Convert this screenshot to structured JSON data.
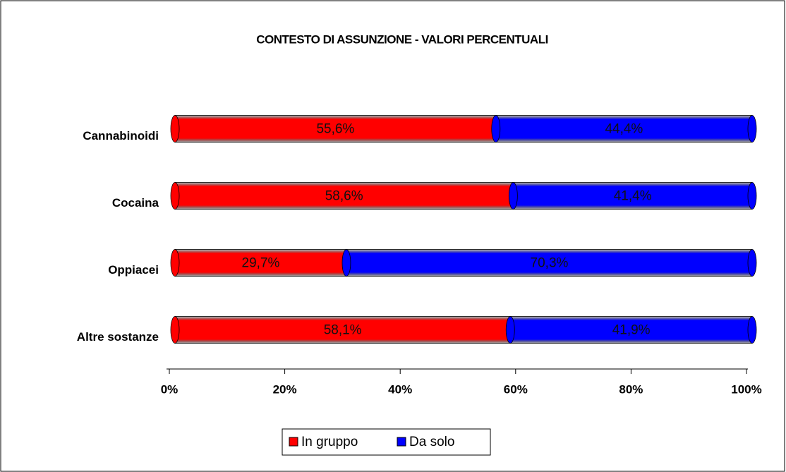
{
  "chart_data": {
    "type": "stacked_barh",
    "title": "CONTESTO DI ASSUNZIONE - VALORI PERCENTUALI",
    "categories": [
      "Cannabinoidi",
      "Cocaina",
      "Oppiacei",
      "Altre sostanze"
    ],
    "series": [
      {
        "name": "In gruppo",
        "color": "#ff0000",
        "values": [
          55.6,
          58.6,
          29.7,
          58.1
        ],
        "value_labels": [
          "55,6%",
          "58,6%",
          "29,7%",
          "58,1%"
        ]
      },
      {
        "name": "Da solo",
        "color": "#0000ff",
        "values": [
          44.4,
          41.4,
          70.3,
          41.9
        ],
        "value_labels": [
          "44,4%",
          "41,4%",
          "70,3%",
          "41,9%"
        ]
      }
    ],
    "xlim": [
      0,
      100
    ],
    "xticks": [
      {
        "value": 0,
        "label": "0%"
      },
      {
        "value": 20,
        "label": "20%"
      },
      {
        "value": 40,
        "label": "40%"
      },
      {
        "value": 60,
        "label": "60%"
      },
      {
        "value": 80,
        "label": "80%"
      },
      {
        "value": 100,
        "label": "100%"
      }
    ],
    "legend": "bottom"
  }
}
